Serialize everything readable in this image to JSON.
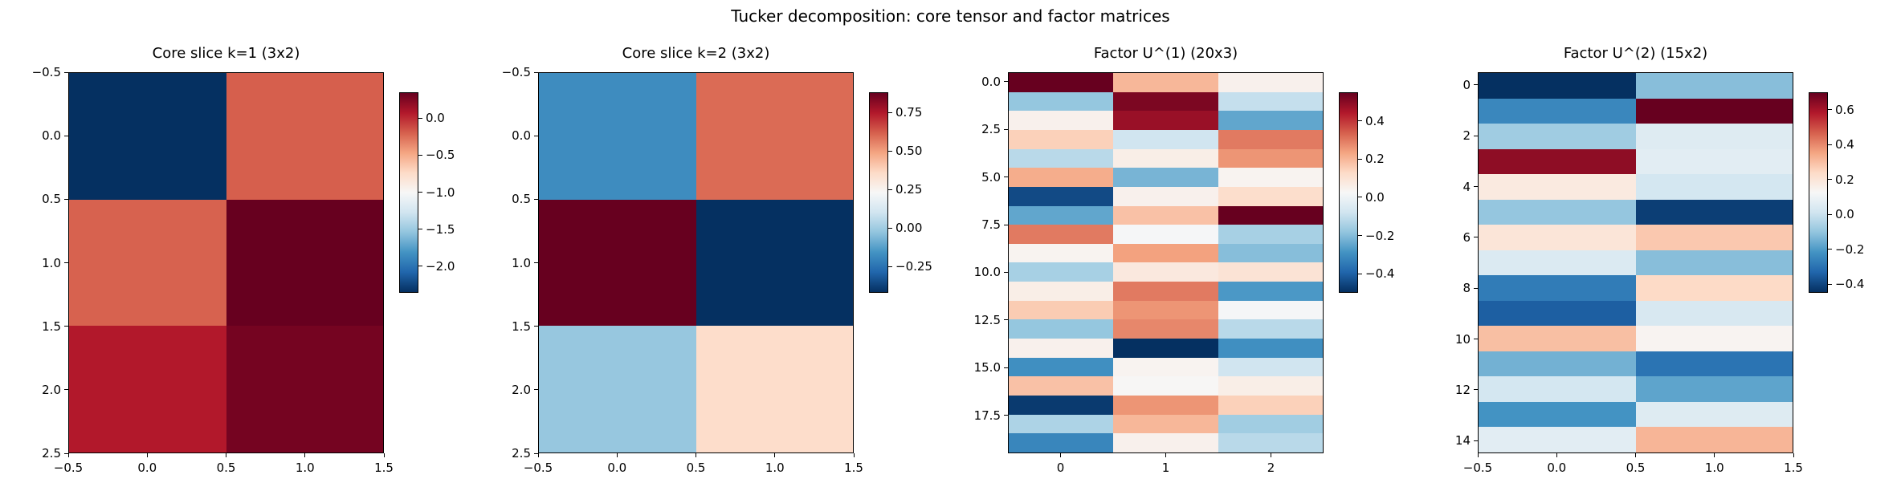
{
  "figure": {
    "title": "Tucker decomposition: core tensor and factor matrices",
    "background": "#ffffff",
    "text_color": "#000000"
  },
  "colormap": {
    "name": "RdBu_r",
    "anchors": [
      "#053061",
      "#2166ac",
      "#4393c3",
      "#92c5de",
      "#d1e5f0",
      "#f7f7f7",
      "#fddbc7",
      "#f4a582",
      "#d6604d",
      "#b2182b",
      "#67001f"
    ]
  },
  "chart_data": [
    {
      "type": "heatmap",
      "title": "Core slice k=1 (3x2)",
      "shape": [
        3,
        2
      ],
      "values": [
        [
          -2.36,
          -0.19
        ],
        [
          -0.2,
          0.35
        ],
        [
          0.08,
          0.3
        ]
      ],
      "vmin": -2.36,
      "vmax": 0.35,
      "x_ticks": [
        {
          "v": -0.5,
          "label": "−0.5"
        },
        {
          "v": 0.0,
          "label": "0.0"
        },
        {
          "v": 0.5,
          "label": "0.5"
        },
        {
          "v": 1.0,
          "label": "1.0"
        },
        {
          "v": 1.5,
          "label": "1.5"
        }
      ],
      "y_ticks": [
        {
          "v": -0.5,
          "label": "−0.5"
        },
        {
          "v": 0.0,
          "label": "0.0"
        },
        {
          "v": 0.5,
          "label": "0.5"
        },
        {
          "v": 1.0,
          "label": "1.0"
        },
        {
          "v": 1.5,
          "label": "1.5"
        },
        {
          "v": 2.0,
          "label": "2.0"
        },
        {
          "v": 2.5,
          "label": "2.5"
        }
      ],
      "colorbar": {
        "position": "right",
        "ticks": [
          {
            "v": 0.0,
            "label": "0.0"
          },
          {
            "v": -0.5,
            "label": "−0.5"
          },
          {
            "v": -1.0,
            "label": "−1.0"
          },
          {
            "v": -1.5,
            "label": "−1.5"
          },
          {
            "v": -2.0,
            "label": "−2.0"
          }
        ]
      }
    },
    {
      "type": "heatmap",
      "title": "Core slice k=2 (3x2)",
      "shape": [
        3,
        2
      ],
      "values": [
        [
          -0.18,
          0.6
        ],
        [
          0.88,
          -0.42
        ],
        [
          -0.02,
          0.35
        ]
      ],
      "vmin": -0.42,
      "vmax": 0.88,
      "x_ticks": [
        {
          "v": -0.5,
          "label": "−0.5"
        },
        {
          "v": 0.0,
          "label": "0.0"
        },
        {
          "v": 0.5,
          "label": "0.5"
        },
        {
          "v": 1.0,
          "label": "1.0"
        },
        {
          "v": 1.5,
          "label": "1.5"
        }
      ],
      "y_ticks": [
        {
          "v": -0.5,
          "label": "−0.5"
        },
        {
          "v": 0.0,
          "label": "0.0"
        },
        {
          "v": 0.5,
          "label": "0.5"
        },
        {
          "v": 1.0,
          "label": "1.0"
        },
        {
          "v": 1.5,
          "label": "1.5"
        },
        {
          "v": 2.0,
          "label": "2.0"
        },
        {
          "v": 2.5,
          "label": "2.5"
        }
      ],
      "colorbar": {
        "position": "right",
        "ticks": [
          {
            "v": 0.75,
            "label": "0.75"
          },
          {
            "v": 0.5,
            "label": "0.50"
          },
          {
            "v": 0.25,
            "label": "0.25"
          },
          {
            "v": 0.0,
            "label": "0.00"
          },
          {
            "v": -0.25,
            "label": "−0.25"
          }
        ]
      }
    },
    {
      "type": "heatmap",
      "title": "Factor U^(1) (20x3)",
      "shape": [
        20,
        3
      ],
      "values": [
        [
          0.55,
          0.2,
          0.05
        ],
        [
          -0.18,
          0.52,
          -0.1
        ],
        [
          0.05,
          0.48,
          -0.25
        ],
        [
          0.15,
          -0.08,
          0.3
        ],
        [
          -0.12,
          0.06,
          0.26
        ],
        [
          0.22,
          -0.22,
          0.04
        ],
        [
          -0.45,
          0.05,
          0.12
        ],
        [
          -0.25,
          0.18,
          0.55
        ],
        [
          0.3,
          0.02,
          -0.15
        ],
        [
          0.04,
          0.24,
          -0.2
        ],
        [
          -0.15,
          0.08,
          0.1
        ],
        [
          0.06,
          0.3,
          -0.28
        ],
        [
          0.16,
          0.26,
          0.02
        ],
        [
          -0.18,
          0.28,
          -0.12
        ],
        [
          0.05,
          -0.5,
          -0.3
        ],
        [
          -0.3,
          0.04,
          -0.08
        ],
        [
          0.18,
          0.03,
          0.06
        ],
        [
          -0.48,
          0.26,
          0.15
        ],
        [
          -0.14,
          0.2,
          -0.16
        ],
        [
          -0.32,
          0.05,
          -0.12
        ]
      ],
      "vmin": -0.5,
      "vmax": 0.55,
      "x_ticks": [
        {
          "v": 0,
          "label": "0"
        },
        {
          "v": 1,
          "label": "1"
        },
        {
          "v": 2,
          "label": "2"
        }
      ],
      "y_ticks": [
        {
          "v": 0.0,
          "label": "0.0"
        },
        {
          "v": 2.5,
          "label": "2.5"
        },
        {
          "v": 5.0,
          "label": "5.0"
        },
        {
          "v": 7.5,
          "label": "7.5"
        },
        {
          "v": 10.0,
          "label": "10.0"
        },
        {
          "v": 12.5,
          "label": "12.5"
        },
        {
          "v": 15.0,
          "label": "15.0"
        },
        {
          "v": 17.5,
          "label": "17.5"
        }
      ],
      "colorbar": {
        "position": "right",
        "ticks": [
          {
            "v": 0.4,
            "label": "0.4"
          },
          {
            "v": 0.2,
            "label": "0.2"
          },
          {
            "v": 0.0,
            "label": "0.0"
          },
          {
            "v": -0.2,
            "label": "−0.2"
          },
          {
            "v": -0.4,
            "label": "−0.4"
          }
        ]
      }
    },
    {
      "type": "heatmap",
      "title": "Factor U^(2) (15x2)",
      "shape": [
        15,
        2
      ],
      "values": [
        [
          -0.45,
          -0.12
        ],
        [
          -0.25,
          0.7
        ],
        [
          -0.08,
          0.05
        ],
        [
          0.64,
          0.06
        ],
        [
          0.18,
          0.02
        ],
        [
          -0.1,
          -0.42
        ],
        [
          0.2,
          0.28
        ],
        [
          0.04,
          -0.12
        ],
        [
          -0.28,
          0.24
        ],
        [
          -0.35,
          0.03
        ],
        [
          0.3,
          0.14
        ],
        [
          -0.15,
          -0.3
        ],
        [
          0.02,
          -0.18
        ],
        [
          -0.22,
          0.05
        ],
        [
          0.06,
          0.32
        ]
      ],
      "vmin": -0.45,
      "vmax": 0.7,
      "x_ticks": [
        {
          "v": -0.5,
          "label": "−0.5"
        },
        {
          "v": 0.0,
          "label": "0.0"
        },
        {
          "v": 0.5,
          "label": "0.5"
        },
        {
          "v": 1.0,
          "label": "1.0"
        },
        {
          "v": 1.5,
          "label": "1.5"
        }
      ],
      "y_ticks": [
        {
          "v": 0,
          "label": "0"
        },
        {
          "v": 2,
          "label": "2"
        },
        {
          "v": 4,
          "label": "4"
        },
        {
          "v": 6,
          "label": "6"
        },
        {
          "v": 8,
          "label": "8"
        },
        {
          "v": 10,
          "label": "10"
        },
        {
          "v": 12,
          "label": "12"
        },
        {
          "v": 14,
          "label": "14"
        }
      ],
      "colorbar": {
        "position": "right",
        "ticks": [
          {
            "v": 0.6,
            "label": "0.6"
          },
          {
            "v": 0.4,
            "label": "0.4"
          },
          {
            "v": 0.2,
            "label": "0.2"
          },
          {
            "v": 0.0,
            "label": "0.0"
          },
          {
            "v": -0.2,
            "label": "−0.2"
          },
          {
            "v": -0.4,
            "label": "−0.4"
          }
        ]
      }
    }
  ]
}
